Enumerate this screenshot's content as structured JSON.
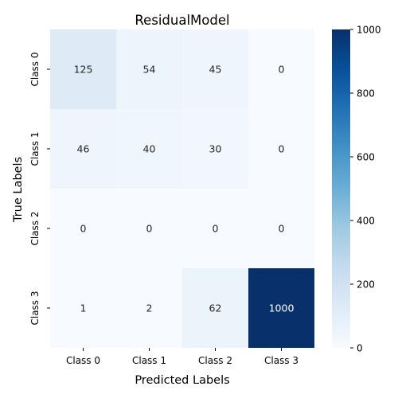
{
  "chart_data": {
    "type": "heatmap",
    "title": "ResidualModel",
    "xlabel": "Predicted Labels",
    "ylabel": "True Labels",
    "x_categories": [
      "Class 0",
      "Class 1",
      "Class 2",
      "Class 3"
    ],
    "y_categories": [
      "Class 0",
      "Class 1",
      "Class 2",
      "Class 3"
    ],
    "values": [
      [
        125,
        54,
        45,
        0
      ],
      [
        46,
        40,
        30,
        0
      ],
      [
        0,
        0,
        0,
        0
      ],
      [
        1,
        2,
        62,
        1000
      ]
    ],
    "colorbar": {
      "range": [
        0,
        1000
      ],
      "ticks": [
        "0",
        "200",
        "400",
        "600",
        "800",
        "1000"
      ],
      "colormap": "Blues",
      "low_color": "#f7fbff",
      "high_color": "#08306b"
    }
  }
}
